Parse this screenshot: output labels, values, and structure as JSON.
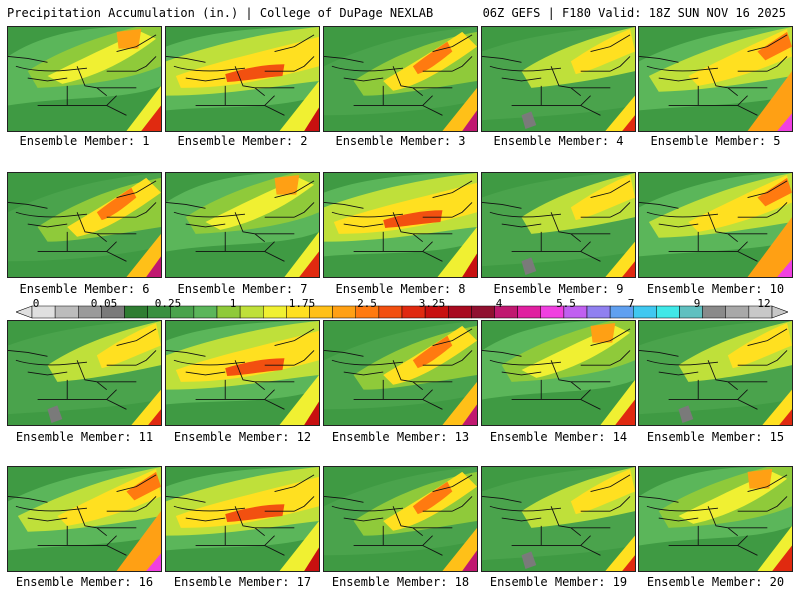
{
  "header": {
    "title_left": "Precipitation Accumulation (in.) | College of DuPage NEXLAB",
    "title_right": "06Z GEFS | F180 Valid: 18Z SUN NOV 16 2025"
  },
  "members": [
    {
      "label": "Ensemble Member: 1",
      "variant": 0
    },
    {
      "label": "Ensemble Member: 2",
      "variant": 1
    },
    {
      "label": "Ensemble Member: 3",
      "variant": 2
    },
    {
      "label": "Ensemble Member: 4",
      "variant": 3
    },
    {
      "label": "Ensemble Member: 5",
      "variant": 4
    },
    {
      "label": "Ensemble Member: 6",
      "variant": 2
    },
    {
      "label": "Ensemble Member: 7",
      "variant": 0
    },
    {
      "label": "Ensemble Member: 8",
      "variant": 1
    },
    {
      "label": "Ensemble Member: 9",
      "variant": 3
    },
    {
      "label": "Ensemble Member: 10",
      "variant": 4
    },
    {
      "label": "Ensemble Member: 11",
      "variant": 3
    },
    {
      "label": "Ensemble Member: 12",
      "variant": 1
    },
    {
      "label": "Ensemble Member: 13",
      "variant": 2
    },
    {
      "label": "Ensemble Member: 14",
      "variant": 0
    },
    {
      "label": "Ensemble Member: 15",
      "variant": 3
    },
    {
      "label": "Ensemble Member: 16",
      "variant": 4
    },
    {
      "label": "Ensemble Member: 17",
      "variant": 1
    },
    {
      "label": "Ensemble Member: 18",
      "variant": 2
    },
    {
      "label": "Ensemble Member: 19",
      "variant": 3
    },
    {
      "label": "Ensemble Member: 20",
      "variant": 0
    }
  ],
  "color_scale": {
    "tick_labels": [
      "0",
      "0.05",
      "0.25",
      "1",
      "1.75",
      "2.5",
      "3.25",
      "4",
      "5.5",
      "7",
      "9",
      "12"
    ],
    "colors": [
      "#e0e0e0",
      "#bcbcbc",
      "#9a9a9a",
      "#7a7a7a",
      "#2f7d32",
      "#3a9040",
      "#4aa34c",
      "#5bb65a",
      "#8fca3a",
      "#bfe03a",
      "#f0f032",
      "#ffe020",
      "#ffc018",
      "#ffa014",
      "#ff7a10",
      "#f25010",
      "#e02a10",
      "#c81010",
      "#a80a20",
      "#901030",
      "#c01870",
      "#e020a0",
      "#f040e0",
      "#c060f0",
      "#9080f0",
      "#60a0f0",
      "#40c8f0",
      "#40e8e8",
      "#60c0c0",
      "#8a8a8a",
      "#a8a8a8",
      "#c8c8c8"
    ]
  }
}
